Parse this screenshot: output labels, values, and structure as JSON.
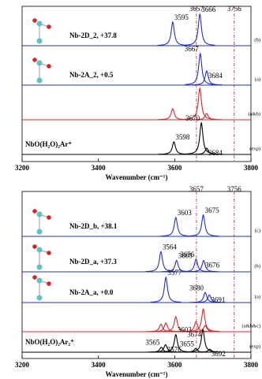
{
  "chart_data": [
    {
      "type": "spectrum",
      "xlabel": "Wavenumber (cm⁻¹)",
      "xlim": [
        3200,
        3800
      ],
      "xticks": [
        3200,
        3400,
        3600,
        3800
      ],
      "ref_lines": [
        3657,
        3756
      ],
      "ref_color": "#e0242b",
      "traces": [
        {
          "tag": "(b)",
          "annotation": "Nb-2D_2, +37.8",
          "color": "#1f2fd6",
          "x": [
            3595,
            3666
          ],
          "intensity": [
            0.75,
            1.0
          ],
          "peak_labels": true
        },
        {
          "tag": "(a)",
          "annotation": "Nb-2A_2, +0.5",
          "color": "#1f2fd6",
          "x": [
            3667,
            3684
          ],
          "intensity": [
            1.0,
            0.45
          ],
          "peak_labels": true
        },
        {
          "tag": "(a&b)",
          "color": "#e0242b",
          "x": [
            3595,
            3666,
            3684
          ],
          "intensity": [
            0.35,
            1.0,
            0.2
          ],
          "peak_labels": false
        },
        {
          "tag": "(exp)",
          "annotation": "NbO(H₂O)₂Ar⁺",
          "color": "#000000",
          "x": [
            3598,
            3670,
            3684
          ],
          "intensity": [
            0.4,
            1.0,
            0.2
          ],
          "peak_labels": true
        }
      ]
    },
    {
      "type": "spectrum",
      "xlabel": "Wavenumber (cm⁻¹)",
      "xlim": [
        3200,
        3800
      ],
      "xticks": [
        3200,
        3400,
        3600,
        3800
      ],
      "ref_lines": [
        3657,
        3756
      ],
      "ref_color": "#e0242b",
      "traces": [
        {
          "tag": "(c)",
          "annotation": "Nb-2D_b, +38.1",
          "color": "#1f2fd6",
          "x": [
            3603,
            3675
          ],
          "intensity": [
            0.75,
            0.85
          ],
          "peak_labels": true
        },
        {
          "tag": "(b)",
          "annotation": "Nb-2D_a, +37.3",
          "color": "#1f2fd6",
          "x": [
            3564,
            3605,
            3656,
            3676
          ],
          "intensity": [
            0.8,
            0.45,
            0.5,
            0.45
          ],
          "peak_labels": true
        },
        {
          "tag": "(a)",
          "annotation": "Nb-2A_a, +0.0",
          "color": "#1f2fd6",
          "x": [
            3577,
            3680,
            3691
          ],
          "intensity": [
            1.0,
            0.4,
            0.3
          ],
          "peak_labels": true
        },
        {
          "tag": "(a&b&c)",
          "color": "#e0242b",
          "x": [
            3564,
            3577,
            3603,
            3656,
            3675,
            3680
          ],
          "intensity": [
            0.3,
            0.35,
            0.6,
            0.4,
            0.9,
            0.25
          ],
          "peak_labels": false
        },
        {
          "tag": "(exp)",
          "annotation": "NbO(H₂O)₂Ar₂⁺",
          "color": "#000000",
          "x": [
            3565,
            3576,
            3603,
            3655,
            3674,
            3692
          ],
          "intensity": [
            0.2,
            0.3,
            0.7,
            0.15,
            0.9,
            0.12
          ],
          "peak_labels": true
        }
      ]
    }
  ]
}
